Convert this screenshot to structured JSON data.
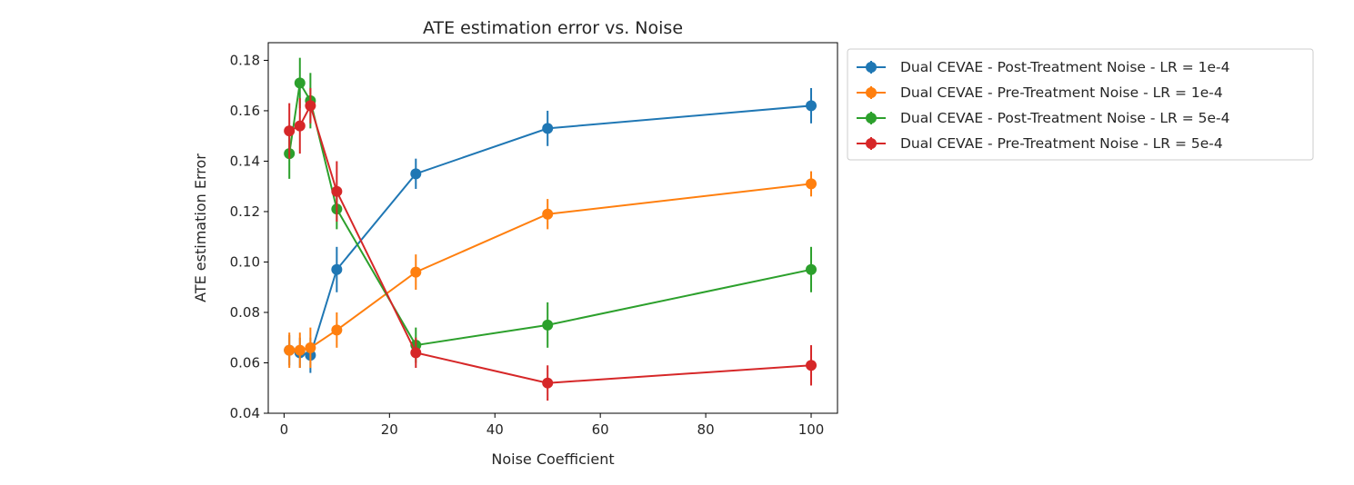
{
  "chart_data": {
    "type": "line",
    "title": "ATE estimation error vs. Noise",
    "xlabel": "Noise Coefficient",
    "ylabel": "ATE estimation Error",
    "xlim": [
      -3,
      105
    ],
    "ylim": [
      0.04,
      0.187
    ],
    "xticks": [
      0,
      20,
      40,
      60,
      80,
      100
    ],
    "yticks": [
      0.04,
      0.06,
      0.08,
      0.1,
      0.12,
      0.14,
      0.16,
      0.18
    ],
    "xtick_labels": [
      "0",
      "20",
      "40",
      "60",
      "80",
      "100"
    ],
    "ytick_labels": [
      "0.04",
      "0.06",
      "0.08",
      "0.10",
      "0.12",
      "0.14",
      "0.16",
      "0.18"
    ],
    "grid": false,
    "legend_position": "outside-upper-right",
    "x": [
      1,
      3,
      5,
      10,
      25,
      50,
      100
    ],
    "series": [
      {
        "name": "Dual CEVAE - Post-Treatment Noise - LR = 1e-4",
        "color": "#1f77b4",
        "values": [
          0.065,
          0.064,
          0.063,
          0.097,
          0.135,
          0.153,
          0.162
        ],
        "errors": [
          0.006,
          0.006,
          0.007,
          0.009,
          0.006,
          0.007,
          0.007
        ]
      },
      {
        "name": "Dual CEVAE - Pre-Treatment Noise - LR = 1e-4",
        "color": "#ff7f0e",
        "values": [
          0.065,
          0.065,
          0.066,
          0.073,
          0.096,
          0.119,
          0.131
        ],
        "errors": [
          0.007,
          0.007,
          0.008,
          0.007,
          0.007,
          0.006,
          0.005
        ]
      },
      {
        "name": "Dual CEVAE - Post-Treatment Noise - LR = 5e-4",
        "color": "#2ca02c",
        "values": [
          0.143,
          0.171,
          0.164,
          0.121,
          0.067,
          0.075,
          0.097
        ],
        "errors": [
          0.01,
          0.01,
          0.011,
          0.008,
          0.007,
          0.009,
          0.009
        ]
      },
      {
        "name": "Dual CEVAE - Pre-Treatment Noise - LR = 5e-4",
        "color": "#d62728",
        "values": [
          0.152,
          0.154,
          0.162,
          0.128,
          0.064,
          0.052,
          0.059
        ],
        "errors": [
          0.011,
          0.011,
          0.007,
          0.012,
          0.006,
          0.007,
          0.008
        ]
      }
    ]
  }
}
